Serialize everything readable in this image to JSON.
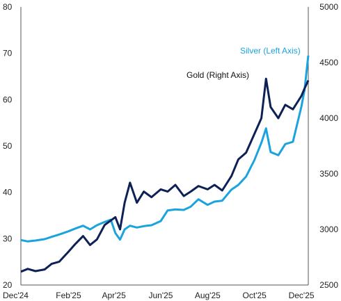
{
  "chart_data": {
    "type": "line",
    "title": "",
    "xlabel": "",
    "ylabel": "",
    "grid": false,
    "x_range": [
      "2024-12-01",
      "2025-12-10"
    ],
    "x_tick_labels": [
      {
        "label": "Dec'24",
        "date": "2024-12-01"
      },
      {
        "label": "Feb'25",
        "date": "2025-02-01"
      },
      {
        "label": "Apr'25",
        "date": "2025-04-01"
      },
      {
        "label": "Jun'25",
        "date": "2025-06-01"
      },
      {
        "label": "Aug'25",
        "date": "2025-08-01"
      },
      {
        "label": "Oct'25",
        "date": "2025-10-01"
      },
      {
        "label": "Dec'25",
        "date": "2025-12-01"
      }
    ],
    "left_axis": {
      "min": 20,
      "max": 80,
      "ticks": [
        "20",
        "30",
        "40",
        "50",
        "60",
        "70",
        "80"
      ]
    },
    "right_axis": {
      "min": 2500,
      "max": 5000,
      "ticks": [
        "2500",
        "3000",
        "3500",
        "4000",
        "4500",
        "5000"
      ]
    },
    "series": [
      {
        "name": "Silver (Left Axis)",
        "axis": "left",
        "color": "#1aa3dd",
        "points": [
          [
            "2024-12-01",
            29.7
          ],
          [
            "2024-12-10",
            29.4
          ],
          [
            "2024-12-20",
            29.6
          ],
          [
            "2025-01-01",
            29.9
          ],
          [
            "2025-01-10",
            30.4
          ],
          [
            "2025-01-20",
            30.9
          ],
          [
            "2025-02-01",
            31.6
          ],
          [
            "2025-02-10",
            32.2
          ],
          [
            "2025-02-20",
            32.8
          ],
          [
            "2025-03-01",
            32.0
          ],
          [
            "2025-03-10",
            32.9
          ],
          [
            "2025-03-20",
            33.6
          ],
          [
            "2025-03-28",
            34.1
          ],
          [
            "2025-04-03",
            31.2
          ],
          [
            "2025-04-09",
            29.8
          ],
          [
            "2025-04-15",
            32.0
          ],
          [
            "2025-04-22",
            32.8
          ],
          [
            "2025-05-01",
            32.4
          ],
          [
            "2025-05-10",
            32.7
          ],
          [
            "2025-05-20",
            32.9
          ],
          [
            "2025-06-01",
            33.8
          ],
          [
            "2025-06-10",
            36.1
          ],
          [
            "2025-06-20",
            36.3
          ],
          [
            "2025-07-01",
            36.2
          ],
          [
            "2025-07-10",
            36.9
          ],
          [
            "2025-07-20",
            38.5
          ],
          [
            "2025-08-01",
            37.3
          ],
          [
            "2025-08-10",
            38.0
          ],
          [
            "2025-08-20",
            38.2
          ],
          [
            "2025-09-01",
            40.6
          ],
          [
            "2025-09-10",
            41.6
          ],
          [
            "2025-09-20",
            43.4
          ],
          [
            "2025-10-01",
            47.0
          ],
          [
            "2025-10-10",
            50.7
          ],
          [
            "2025-10-16",
            53.8
          ],
          [
            "2025-10-22",
            48.7
          ],
          [
            "2025-11-01",
            48.0
          ],
          [
            "2025-11-10",
            50.4
          ],
          [
            "2025-11-20",
            50.9
          ],
          [
            "2025-12-01",
            58.5
          ],
          [
            "2025-12-05",
            62.0
          ],
          [
            "2025-12-10",
            69.5
          ]
        ]
      },
      {
        "name": "Gold (Right Axis)",
        "axis": "right",
        "color": "#0d2157",
        "points": [
          [
            "2024-12-01",
            2620
          ],
          [
            "2024-12-10",
            2645
          ],
          [
            "2024-12-20",
            2625
          ],
          [
            "2025-01-01",
            2640
          ],
          [
            "2025-01-10",
            2690
          ],
          [
            "2025-01-20",
            2710
          ],
          [
            "2025-02-01",
            2800
          ],
          [
            "2025-02-10",
            2870
          ],
          [
            "2025-02-20",
            2940
          ],
          [
            "2025-03-01",
            2860
          ],
          [
            "2025-03-10",
            2910
          ],
          [
            "2025-03-20",
            3040
          ],
          [
            "2025-03-28",
            3080
          ],
          [
            "2025-04-03",
            3110
          ],
          [
            "2025-04-09",
            3000
          ],
          [
            "2025-04-15",
            3240
          ],
          [
            "2025-04-22",
            3420
          ],
          [
            "2025-05-01",
            3240
          ],
          [
            "2025-05-10",
            3340
          ],
          [
            "2025-05-20",
            3290
          ],
          [
            "2025-06-01",
            3360
          ],
          [
            "2025-06-10",
            3340
          ],
          [
            "2025-06-20",
            3400
          ],
          [
            "2025-07-01",
            3300
          ],
          [
            "2025-07-10",
            3340
          ],
          [
            "2025-07-20",
            3390
          ],
          [
            "2025-08-01",
            3360
          ],
          [
            "2025-08-10",
            3400
          ],
          [
            "2025-08-20",
            3350
          ],
          [
            "2025-09-01",
            3480
          ],
          [
            "2025-09-10",
            3630
          ],
          [
            "2025-09-20",
            3690
          ],
          [
            "2025-10-01",
            3860
          ],
          [
            "2025-10-10",
            4000
          ],
          [
            "2025-10-16",
            4355
          ],
          [
            "2025-10-22",
            4100
          ],
          [
            "2025-11-01",
            4000
          ],
          [
            "2025-11-10",
            4120
          ],
          [
            "2025-11-20",
            4080
          ],
          [
            "2025-12-01",
            4200
          ],
          [
            "2025-12-05",
            4265
          ],
          [
            "2025-12-10",
            4340
          ]
        ]
      }
    ]
  }
}
